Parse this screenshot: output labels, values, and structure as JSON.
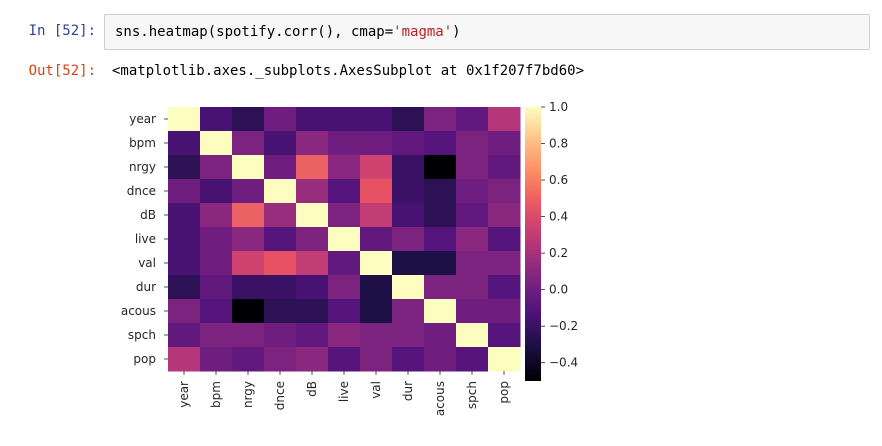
{
  "cell": {
    "in_prompt": "In [52]:",
    "code_prefix": "sns.heatmap(spotify.corr(), cmap=",
    "code_string": "'magma'",
    "code_suffix": ")",
    "out_prompt": "Out[52]:",
    "output_text": "<matplotlib.axes._subplots.AxesSubplot at 0x1f207f7bd60>"
  },
  "chart_data": {
    "type": "heatmap",
    "title": "",
    "colormap": "magma",
    "labels": [
      "year",
      "bpm",
      "nrgy",
      "dnce",
      "dB",
      "live",
      "val",
      "dur",
      "acous",
      "spch",
      "pop"
    ],
    "matrix": [
      [
        1.0,
        -0.15,
        -0.25,
        0.0,
        -0.15,
        -0.15,
        -0.15,
        -0.25,
        0.05,
        -0.05,
        0.25
      ],
      [
        -0.15,
        1.0,
        0.05,
        -0.15,
        0.1,
        0.0,
        0.0,
        -0.05,
        -0.1,
        0.05,
        0.0
      ],
      [
        -0.25,
        0.05,
        1.0,
        0.0,
        0.5,
        0.1,
        0.35,
        -0.2,
        -0.5,
        0.05,
        -0.05
      ],
      [
        0.0,
        -0.15,
        0.0,
        1.0,
        0.15,
        -0.1,
        0.45,
        -0.2,
        -0.25,
        0.0,
        0.05
      ],
      [
        -0.15,
        0.1,
        0.5,
        0.15,
        1.0,
        0.05,
        0.3,
        -0.15,
        -0.25,
        -0.05,
        0.1
      ],
      [
        -0.15,
        0.0,
        0.1,
        -0.1,
        0.05,
        1.0,
        -0.05,
        0.05,
        -0.1,
        0.1,
        -0.1
      ],
      [
        -0.15,
        0.0,
        0.35,
        0.45,
        0.3,
        -0.05,
        1.0,
        -0.3,
        -0.3,
        0.05,
        0.05
      ],
      [
        -0.25,
        -0.05,
        -0.2,
        -0.2,
        -0.15,
        0.05,
        -0.3,
        1.0,
        0.05,
        0.05,
        -0.1
      ],
      [
        0.05,
        -0.1,
        -0.5,
        -0.25,
        -0.25,
        -0.1,
        -0.3,
        0.05,
        1.0,
        0.0,
        0.0
      ],
      [
        -0.05,
        0.05,
        0.05,
        0.0,
        -0.05,
        0.1,
        0.05,
        0.05,
        0.0,
        1.0,
        -0.1
      ],
      [
        0.25,
        0.0,
        -0.05,
        0.05,
        0.1,
        -0.1,
        0.05,
        -0.1,
        0.0,
        -0.1,
        1.0
      ]
    ],
    "vmin": -0.5,
    "vmax": 1.0,
    "colorbar_ticks": [
      1.0,
      0.8,
      0.6,
      0.4,
      0.2,
      0.0,
      -0.2,
      -0.4
    ],
    "colorbar_tick_labels": [
      "1.0",
      "0.8",
      "0.6",
      "0.4",
      "0.2",
      "0.0",
      "−0.2",
      "−0.4"
    ]
  }
}
